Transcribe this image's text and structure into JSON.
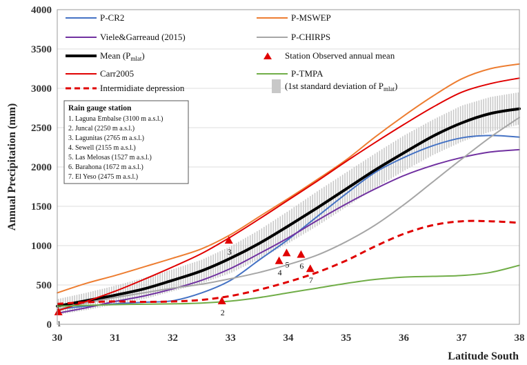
{
  "chart_data": {
    "type": "line",
    "title": "",
    "xlabel": "Latitude South",
    "ylabel": "Annual Precipitation (mm)",
    "xlim": [
      30,
      38
    ],
    "ylim": [
      0,
      4000
    ],
    "x_ticks": [
      "30",
      "31",
      "32",
      "33",
      "34",
      "35",
      "36",
      "37",
      "38"
    ],
    "y_ticks": [
      "0",
      "500",
      "1000",
      "1500",
      "2000",
      "2500",
      "3000",
      "3500",
      "4000"
    ],
    "x": [
      30,
      30.5,
      31,
      31.5,
      32,
      32.5,
      33,
      33.5,
      34,
      34.5,
      35,
      35.5,
      36,
      36.5,
      37,
      37.5,
      38
    ],
    "series": [
      {
        "name": "P-CR2",
        "color": "#4472C4",
        "width": 2,
        "values": [
          190,
          230,
          260,
          280,
          300,
          400,
          560,
          820,
          1080,
          1370,
          1660,
          1930,
          2120,
          2270,
          2370,
          2400,
          2380
        ]
      },
      {
        "name": "P-MSWEP",
        "color": "#ED7D31",
        "width": 2,
        "values": [
          400,
          520,
          620,
          730,
          840,
          960,
          1140,
          1370,
          1600,
          1840,
          2090,
          2380,
          2650,
          2900,
          3120,
          3250,
          3310
        ]
      },
      {
        "name": "Viele&Garreaud (2015)",
        "color": "#7030A0",
        "width": 2,
        "values": [
          140,
          210,
          290,
          360,
          450,
          560,
          710,
          900,
          1100,
          1320,
          1530,
          1720,
          1890,
          2020,
          2120,
          2190,
          2220
        ]
      },
      {
        "name": "P-CHIRPS",
        "color": "#A6A6A6",
        "width": 2,
        "values": [
          190,
          270,
          340,
          400,
          460,
          510,
          580,
          660,
          760,
          880,
          1050,
          1260,
          1520,
          1810,
          2100,
          2380,
          2630
        ]
      },
      {
        "name": "Mean",
        "color": "#000000",
        "width": 4,
        "values": [
          230,
          300,
          370,
          450,
          560,
          680,
          840,
          1030,
          1250,
          1480,
          1720,
          1960,
          2180,
          2390,
          2560,
          2680,
          2740
        ]
      },
      {
        "name": "Carr2005",
        "color": "#E00000",
        "width": 2,
        "values": [
          170,
          290,
          420,
          570,
          730,
          900,
          1110,
          1340,
          1580,
          1820,
          2070,
          2310,
          2540,
          2760,
          2950,
          3060,
          3130
        ]
      },
      {
        "name": "Intermidiate depression",
        "color": "#E00000",
        "width": 3,
        "dashed": true,
        "values": [
          260,
          280,
          290,
          285,
          290,
          310,
          360,
          440,
          540,
          660,
          810,
          990,
          1150,
          1260,
          1310,
          1310,
          1290
        ]
      },
      {
        "name": "P-TMPA",
        "color": "#70AD47",
        "width": 2,
        "values": [
          230,
          240,
          250,
          255,
          260,
          270,
          295,
          340,
          400,
          460,
          520,
          570,
          600,
          610,
          620,
          660,
          750
        ]
      }
    ],
    "std_band": {
      "name": "(1st standard deviation of P",
      "subscript": "mlat",
      "suffix": ")",
      "color": "#C8C8C8",
      "lower": [
        120,
        180,
        250,
        320,
        420,
        520,
        650,
        830,
        1030,
        1250,
        1490,
        1730,
        1950,
        2150,
        2320,
        2450,
        2540
      ],
      "upper": [
        320,
        400,
        490,
        590,
        700,
        820,
        990,
        1200,
        1440,
        1690,
        1930,
        2170,
        2400,
        2600,
        2780,
        2890,
        2950
      ]
    },
    "stations": {
      "name": "Station Observed annual mean",
      "color": "#E00000",
      "points": [
        {
          "label": "1",
          "x": 30.02,
          "y": 150
        },
        {
          "label": "2",
          "x": 32.85,
          "y": 290
        },
        {
          "label": "3",
          "x": 32.97,
          "y": 1060
        },
        {
          "label": "4",
          "x": 33.84,
          "y": 800
        },
        {
          "label": "5",
          "x": 33.97,
          "y": 900
        },
        {
          "label": "6",
          "x": 34.22,
          "y": 880
        },
        {
          "label": "7",
          "x": 34.38,
          "y": 700
        }
      ]
    },
    "legend": {
      "mean_prefix": "Mean (P",
      "mean_subscript": "mlat",
      "mean_suffix": ")"
    }
  },
  "rain_gauge_box": {
    "title": "Rain gauge station",
    "items": [
      "1. Laguna Embalse (3100 m a.s.l.)",
      "2. Juncal (2250 m a.s.l.)",
      "3. Lagunitas  (2765 m a.s.l.)",
      "4. Sewell (2155 m a.s.l.)",
      "5. Las Melosas  (1527 m a.s.l.)",
      "6. Barahona (1672 m a.s.l.)",
      "7. El Yeso (2475 m a.s.l.)"
    ]
  }
}
